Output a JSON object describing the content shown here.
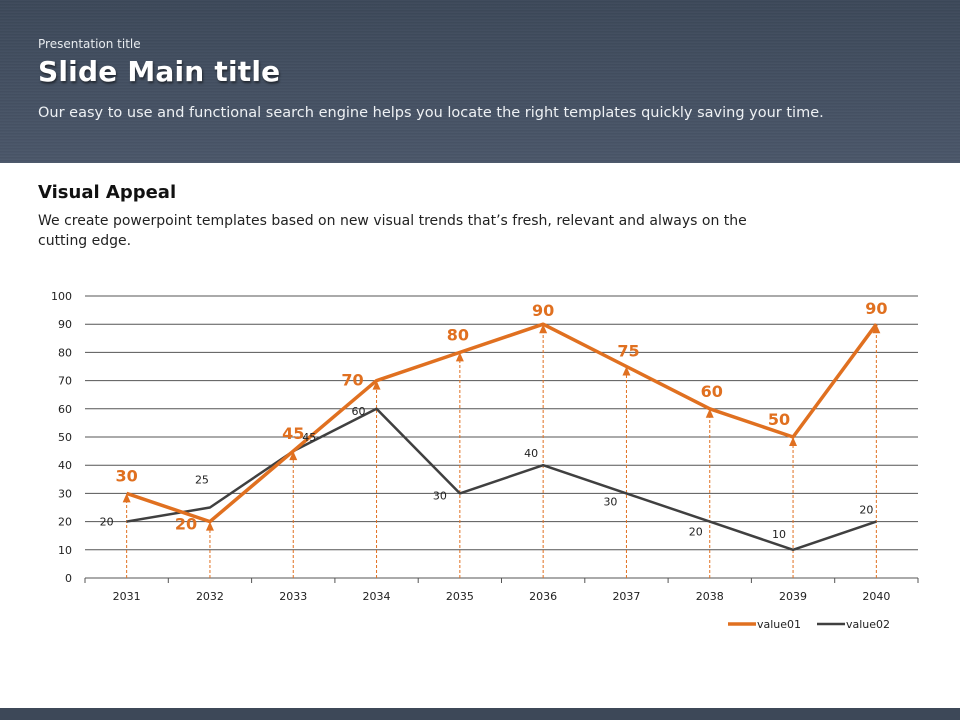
{
  "header": {
    "presentation_title": "Presentation  title",
    "main_title": "Slide Main title",
    "subtitle": "Our easy to use and functional search engine helps you locate the right templates quickly saving your time."
  },
  "section": {
    "title": "Visual Appeal",
    "body": "We create powerpoint templates based on new visual trends that’s fresh, relevant and always on the cutting edge."
  },
  "colors": {
    "header_bg": "#414d5f",
    "value01": "#e07020",
    "value02": "#404040"
  },
  "chart_data": {
    "type": "line",
    "title": "",
    "xlabel": "",
    "ylabel": "",
    "categories": [
      "2031",
      "2032",
      "2033",
      "2034",
      "2035",
      "2036",
      "2037",
      "2038",
      "2039",
      "2040"
    ],
    "series": [
      {
        "name": "value01",
        "values": [
          30,
          20,
          45,
          70,
          80,
          90,
          75,
          60,
          50,
          90
        ],
        "color": "#e07020",
        "markers": "arrow-with-dashed-dropline"
      },
      {
        "name": "value02",
        "values": [
          20,
          25,
          45,
          60,
          30,
          40,
          30,
          20,
          10,
          20
        ],
        "color": "#404040"
      }
    ],
    "ylim": [
      0,
      100
    ],
    "yticks": [
      0,
      10,
      20,
      30,
      40,
      50,
      60,
      70,
      80,
      90,
      100
    ],
    "grid": true,
    "legend": "bottom-right"
  }
}
